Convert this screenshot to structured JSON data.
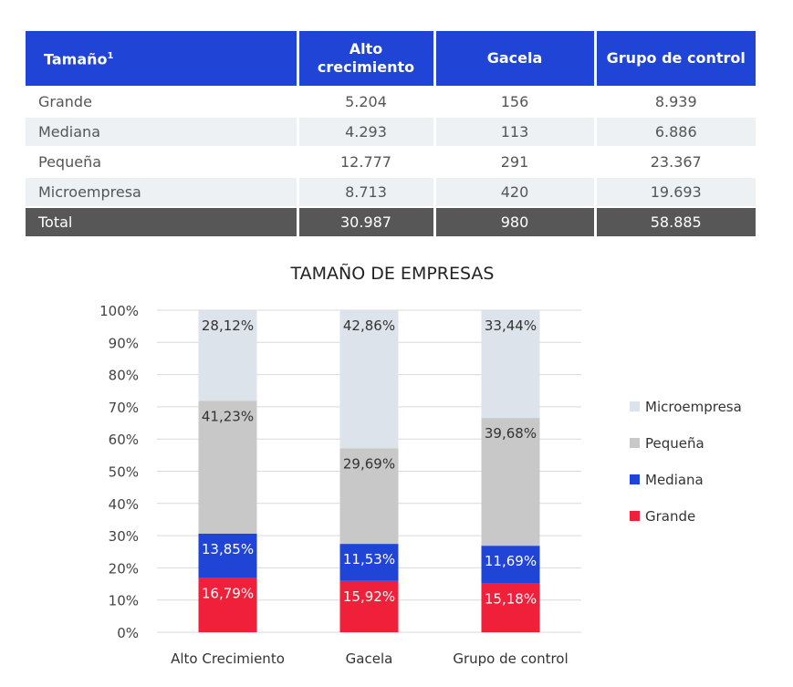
{
  "table": {
    "headers": [
      "Tamaño",
      "Alto crecimiento",
      "Gacela",
      "Grupo de control"
    ],
    "header_superscript": "1",
    "rows": [
      {
        "label": "Grande",
        "values": [
          "5.204",
          "156",
          "8.939"
        ]
      },
      {
        "label": "Mediana",
        "values": [
          "4.293",
          "113",
          "6.886"
        ]
      },
      {
        "label": "Pequeña",
        "values": [
          "12.777",
          "291",
          "23.367"
        ]
      },
      {
        "label": "Microempresa",
        "values": [
          "8.713",
          "420",
          "19.693"
        ]
      }
    ],
    "total": {
      "label": "Total",
      "values": [
        "30.987",
        "980",
        "58.885"
      ]
    }
  },
  "chart_data": {
    "type": "bar",
    "stacked": true,
    "title": "TAMAÑO DE EMPRESAS",
    "categories": [
      "Alto Crecimiento",
      "Gacela",
      "Grupo de control"
    ],
    "series": [
      {
        "name": "Grande",
        "values": [
          16.79,
          15.92,
          15.18
        ],
        "labels": [
          "16,79%",
          "15,92%",
          "15,18%"
        ],
        "color": "#f0203a"
      },
      {
        "name": "Mediana",
        "values": [
          13.85,
          11.53,
          11.69
        ],
        "labels": [
          "13,85%",
          "11,53%",
          "11,69%"
        ],
        "color": "#1f44d6"
      },
      {
        "name": "Pequeña",
        "values": [
          41.23,
          29.69,
          39.68
        ],
        "labels": [
          "41,23%",
          "29,69%",
          "39,68%"
        ],
        "color": "#c8c8c8"
      },
      {
        "name": "Microempresa",
        "values": [
          28.12,
          42.86,
          33.44
        ],
        "labels": [
          "28,12%",
          "42,86%",
          "33,44%"
        ],
        "color": "#dde3ea"
      }
    ],
    "ylim": [
      0,
      100
    ],
    "yticks": [
      "0%",
      "10%",
      "20%",
      "30%",
      "40%",
      "50%",
      "60%",
      "70%",
      "80%",
      "90%",
      "100%"
    ],
    "grid": true,
    "legend_position": "right",
    "legend_order": [
      "Microempresa",
      "Pequeña",
      "Mediana",
      "Grande"
    ]
  }
}
